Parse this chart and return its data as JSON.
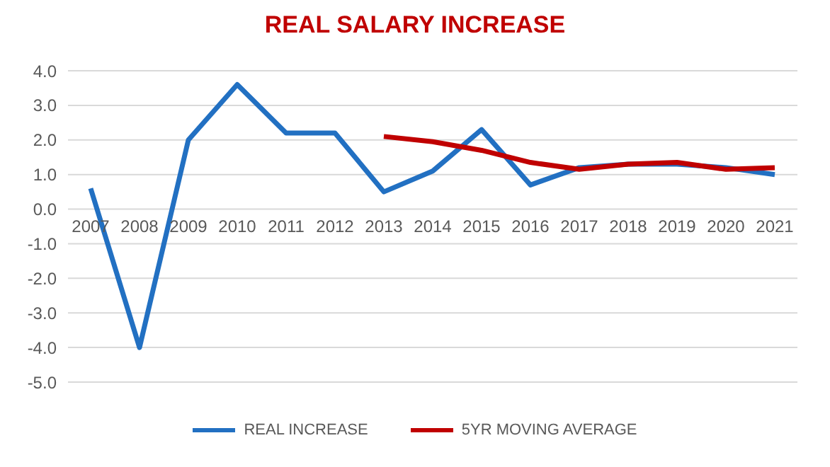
{
  "chart_data": {
    "type": "line",
    "title": "REAL SALARY INCREASE",
    "categories": [
      "2007",
      "2008",
      "2009",
      "2010",
      "2011",
      "2012",
      "2013",
      "2014",
      "2015",
      "2016",
      "2017",
      "2018",
      "2019",
      "2020",
      "2021"
    ],
    "series": [
      {
        "name": "REAL INCREASE",
        "color": "#2270c2",
        "values": [
          0.6,
          -4.0,
          2.0,
          3.6,
          2.2,
          2.2,
          0.5,
          1.1,
          2.3,
          0.7,
          1.2,
          1.3,
          1.3,
          1.2,
          1.0
        ]
      },
      {
        "name": "5YR MOVING AVERAGE",
        "color": "#c00000",
        "values": [
          null,
          null,
          null,
          null,
          null,
          null,
          2.1,
          1.95,
          1.7,
          1.35,
          1.15,
          1.3,
          1.35,
          1.15,
          1.2
        ]
      }
    ],
    "ylim": [
      -5,
      4
    ],
    "yticks": [
      {
        "value": -5,
        "label": "-5.0"
      },
      {
        "value": -4,
        "label": "-4.0"
      },
      {
        "value": -3,
        "label": "-3.0"
      },
      {
        "value": -2,
        "label": "-2.0"
      },
      {
        "value": -1,
        "label": "-1.0"
      },
      {
        "value": 0,
        "label": "0.0"
      },
      {
        "value": 1,
        "label": "1.0"
      },
      {
        "value": 2,
        "label": "2.0"
      },
      {
        "value": 3,
        "label": "3.0"
      },
      {
        "value": 4,
        "label": "4.0"
      }
    ],
    "grid": "y",
    "legend": "bottom",
    "marker": "none",
    "line_style": "solid"
  }
}
